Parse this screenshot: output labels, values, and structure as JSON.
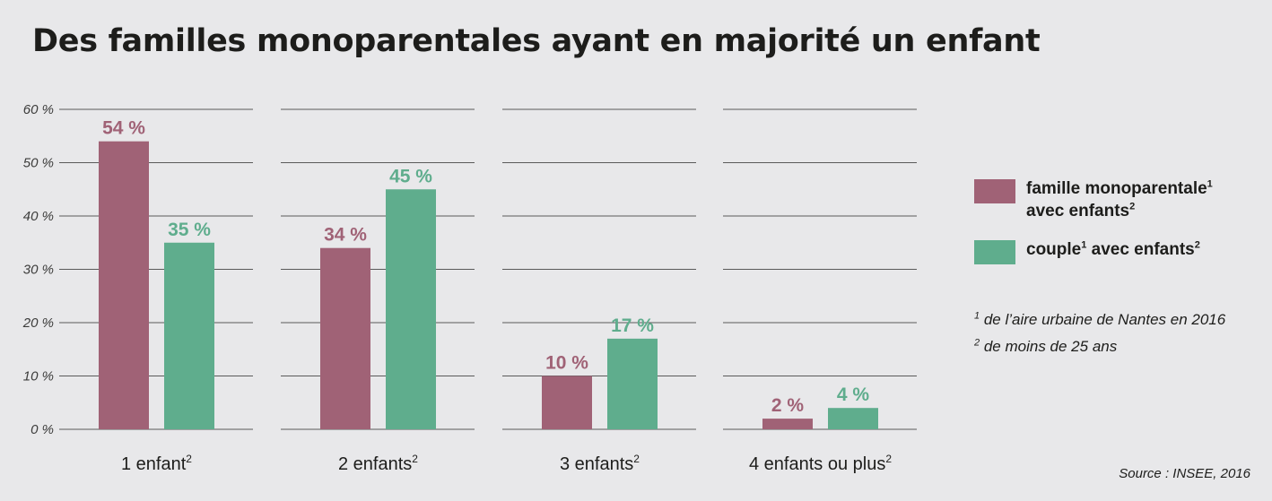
{
  "title": "Des familles monoparentales ayant en majorité un enfant",
  "colors": {
    "monoparentale": "#a06276",
    "couple": "#5fad8d",
    "grid": "#5a5a5a"
  },
  "chart_data": {
    "type": "bar",
    "title": "Des familles monoparentales ayant en majorité un enfant",
    "categories": [
      "1 enfant",
      "2 enfants",
      "3 enfants",
      "4 enfants ou plus"
    ],
    "category_superscript": "2",
    "series": [
      {
        "name": "famille monoparentale avec enfants",
        "values": [
          54,
          34,
          10,
          2
        ],
        "labels": [
          "54 %",
          "34 %",
          "10 %",
          "2 %"
        ]
      },
      {
        "name": "couple avec enfants",
        "values": [
          35,
          45,
          17,
          4
        ],
        "labels": [
          "35 %",
          "45 %",
          "17 %",
          "4 %"
        ]
      }
    ],
    "y_ticks": [
      "0 %",
      "10 %",
      "20 %",
      "30 %",
      "40 %",
      "50 %",
      "60 %"
    ],
    "y_tick_values": [
      0,
      10,
      20,
      30,
      40,
      50,
      60
    ],
    "ylim": [
      0,
      60
    ],
    "grid": true,
    "legend_position": "right"
  },
  "legend": {
    "items": [
      {
        "line1": "famille monoparentale",
        "sup1": "1",
        "line2": "avec enfants",
        "sup2": "2"
      },
      {
        "line1": "couple",
        "sup1": "1",
        "line2": " avec enfants",
        "sup2": "2"
      }
    ]
  },
  "notes": [
    {
      "sup": "1",
      "text": " de l’aire urbaine de Nantes en 2016"
    },
    {
      "sup": "2",
      "text": " de moins de 25 ans"
    }
  ],
  "source": "Source : INSEE, 2016"
}
